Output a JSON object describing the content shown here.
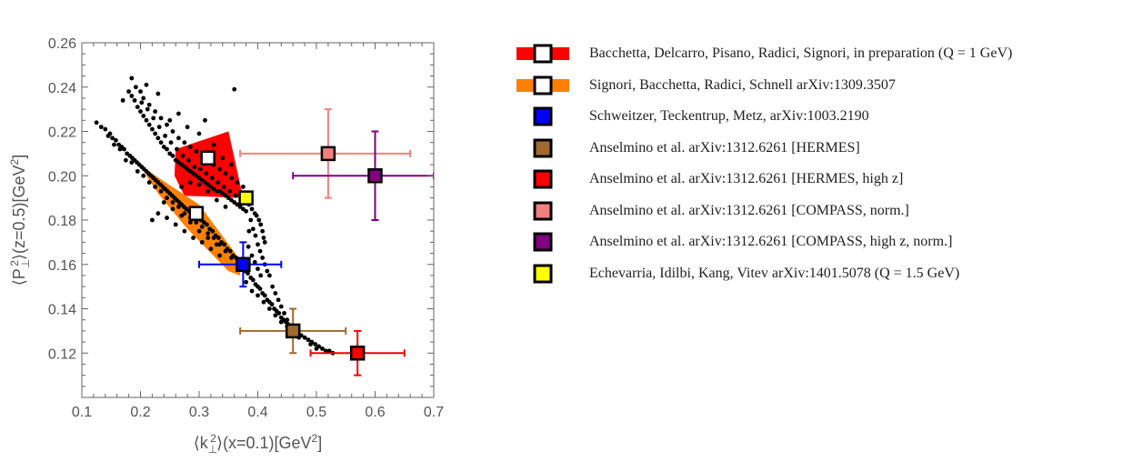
{
  "chart_data": {
    "type": "scatter",
    "title": "",
    "xlabel_parts": [
      "⟨k",
      "⊥",
      "2",
      "⟩(x=0.1)[GeV",
      "2",
      "]"
    ],
    "ylabel_parts": [
      "⟨P",
      "⊥",
      "2",
      "⟩(z=0.5)[GeV",
      "2",
      "]"
    ],
    "xlim": [
      0.1,
      0.7
    ],
    "ylim": [
      0.1,
      0.26
    ],
    "xticks": [
      "0.1",
      "0.2",
      "0.3",
      "0.4",
      "0.5",
      "0.6",
      "0.7"
    ],
    "yticks": [
      "0.12",
      "0.14",
      "0.16",
      "0.18",
      "0.20",
      "0.22",
      "0.24",
      "0.26"
    ],
    "grid": false,
    "legend_position": "right",
    "colors": {
      "red": "#ff0000",
      "orange": "#ff8000",
      "blue": "#0000ff",
      "brown": "#a0692e",
      "pink": "#f08080",
      "purple": "#800080",
      "yellow": "#ffff00",
      "points": "#000000"
    },
    "regions": [
      {
        "name": "Bacchetta, Delcarro, Pisano, Radici, Signori, in preparation (Q = 1 GeV)",
        "color": "#ff0000",
        "polygon": [
          [
            0.26,
            0.212
          ],
          [
            0.35,
            0.22
          ],
          [
            0.375,
            0.19
          ],
          [
            0.275,
            0.191
          ],
          [
            0.258,
            0.2
          ]
        ],
        "central": [
          0.315,
          0.208
        ]
      },
      {
        "name": "Signori, Bacchetta, Radici, Schnell arXiv:1309.3507",
        "color": "#ff8000",
        "polygon": [
          [
            0.21,
            0.203
          ],
          [
            0.22,
            0.201
          ],
          [
            0.3,
            0.187
          ],
          [
            0.37,
            0.162
          ],
          [
            0.37,
            0.155
          ],
          [
            0.35,
            0.157
          ],
          [
            0.28,
            0.176
          ],
          [
            0.23,
            0.192
          ],
          [
            0.21,
            0.2
          ]
        ],
        "central": [
          0.295,
          0.183
        ]
      }
    ],
    "series": [
      {
        "name": "Schweitzer, Teckentrup, Metz, arXiv:1003.2190",
        "color": "#0000ff",
        "x": 0.375,
        "y": 0.16,
        "xerr": [
          0.3,
          0.44
        ],
        "yerr": [
          0.15,
          0.17
        ]
      },
      {
        "name": "Anselmino et al. arXiv:1312.6261 [HERMES]",
        "color": "#a0692e",
        "x": 0.46,
        "y": 0.13,
        "xerr": [
          0.37,
          0.55
        ],
        "yerr": [
          0.12,
          0.14
        ]
      },
      {
        "name": "Anselmino et al. arXiv:1312.6261 [HERMES, high z]",
        "color": "#ff0000",
        "x": 0.57,
        "y": 0.12,
        "xerr": [
          0.49,
          0.65
        ],
        "yerr": [
          0.11,
          0.13
        ]
      },
      {
        "name": "Anselmino et al. arXiv:1312.6261 [COMPASS, norm.]",
        "color": "#f08080",
        "x": 0.52,
        "y": 0.21,
        "xerr": [
          0.37,
          0.66
        ],
        "yerr": [
          0.19,
          0.23
        ]
      },
      {
        "name": "Anselmino et al. arXiv:1312.6261 [COMPASS, high z, norm.]",
        "color": "#800080",
        "x": 0.6,
        "y": 0.2,
        "xerr": [
          0.46,
          0.7
        ],
        "yerr": [
          0.18,
          0.22
        ]
      },
      {
        "name": "Echevarria, Idilbi, Kang, Vitev arXiv:1401.5078 (Q = 1.5 GeV)",
        "color": "#ffff00",
        "x": 0.38,
        "y": 0.19,
        "xerr": null,
        "yerr": null
      }
    ],
    "points": [
      [
        0.125,
        0.224
      ],
      [
        0.133,
        0.222
      ],
      [
        0.14,
        0.221
      ],
      [
        0.148,
        0.219
      ],
      [
        0.152,
        0.217
      ],
      [
        0.158,
        0.216
      ],
      [
        0.163,
        0.214
      ],
      [
        0.168,
        0.213
      ],
      [
        0.172,
        0.212
      ],
      [
        0.177,
        0.21
      ],
      [
        0.182,
        0.209
      ],
      [
        0.186,
        0.208
      ],
      [
        0.19,
        0.207
      ],
      [
        0.194,
        0.206
      ],
      [
        0.198,
        0.205
      ],
      [
        0.202,
        0.204
      ],
      [
        0.206,
        0.203
      ],
      [
        0.21,
        0.202
      ],
      [
        0.214,
        0.201
      ],
      [
        0.218,
        0.2
      ],
      [
        0.222,
        0.199
      ],
      [
        0.226,
        0.198
      ],
      [
        0.23,
        0.197
      ],
      [
        0.234,
        0.196
      ],
      [
        0.238,
        0.195
      ],
      [
        0.242,
        0.194
      ],
      [
        0.246,
        0.193
      ],
      [
        0.25,
        0.192
      ],
      [
        0.254,
        0.191
      ],
      [
        0.258,
        0.19
      ],
      [
        0.262,
        0.189
      ],
      [
        0.266,
        0.188
      ],
      [
        0.27,
        0.187
      ],
      [
        0.274,
        0.186
      ],
      [
        0.278,
        0.185
      ],
      [
        0.283,
        0.184
      ],
      [
        0.288,
        0.183
      ],
      [
        0.293,
        0.182
      ],
      [
        0.298,
        0.181
      ],
      [
        0.303,
        0.18
      ],
      [
        0.308,
        0.179
      ],
      [
        0.313,
        0.178
      ],
      [
        0.318,
        0.176
      ],
      [
        0.323,
        0.175
      ],
      [
        0.328,
        0.173
      ],
      [
        0.333,
        0.172
      ],
      [
        0.338,
        0.17
      ],
      [
        0.343,
        0.169
      ],
      [
        0.348,
        0.167
      ],
      [
        0.353,
        0.166
      ],
      [
        0.358,
        0.164
      ],
      [
        0.363,
        0.163
      ],
      [
        0.368,
        0.161
      ],
      [
        0.145,
        0.218
      ],
      [
        0.155,
        0.214
      ],
      [
        0.165,
        0.212
      ],
      [
        0.175,
        0.207
      ],
      [
        0.185,
        0.206
      ],
      [
        0.195,
        0.202
      ],
      [
        0.205,
        0.2
      ],
      [
        0.215,
        0.197
      ],
      [
        0.225,
        0.195
      ],
      [
        0.235,
        0.193
      ],
      [
        0.245,
        0.19
      ],
      [
        0.255,
        0.188
      ],
      [
        0.265,
        0.186
      ],
      [
        0.275,
        0.183
      ],
      [
        0.285,
        0.181
      ],
      [
        0.295,
        0.179
      ],
      [
        0.305,
        0.177
      ],
      [
        0.315,
        0.174
      ],
      [
        0.325,
        0.172
      ],
      [
        0.335,
        0.169
      ],
      [
        0.345,
        0.166
      ],
      [
        0.355,
        0.163
      ],
      [
        0.365,
        0.16
      ],
      [
        0.373,
        0.158
      ],
      [
        0.378,
        0.157
      ],
      [
        0.383,
        0.156
      ],
      [
        0.388,
        0.154
      ],
      [
        0.392,
        0.153
      ],
      [
        0.396,
        0.151
      ],
      [
        0.4,
        0.15
      ],
      [
        0.404,
        0.149
      ],
      [
        0.408,
        0.147
      ],
      [
        0.412,
        0.146
      ],
      [
        0.416,
        0.144
      ],
      [
        0.42,
        0.143
      ],
      [
        0.424,
        0.142
      ],
      [
        0.428,
        0.14
      ],
      [
        0.432,
        0.139
      ],
      [
        0.436,
        0.138
      ],
      [
        0.44,
        0.136
      ],
      [
        0.444,
        0.135
      ],
      [
        0.448,
        0.134
      ],
      [
        0.452,
        0.133
      ],
      [
        0.456,
        0.131
      ],
      [
        0.462,
        0.13
      ],
      [
        0.468,
        0.129
      ],
      [
        0.474,
        0.128
      ],
      [
        0.48,
        0.127
      ],
      [
        0.486,
        0.126
      ],
      [
        0.492,
        0.125
      ],
      [
        0.498,
        0.124
      ],
      [
        0.504,
        0.123
      ],
      [
        0.51,
        0.122
      ],
      [
        0.516,
        0.121
      ],
      [
        0.522,
        0.121
      ],
      [
        0.528,
        0.12
      ],
      [
        0.38,
        0.152
      ],
      [
        0.39,
        0.148
      ],
      [
        0.4,
        0.146
      ],
      [
        0.41,
        0.143
      ],
      [
        0.42,
        0.14
      ],
      [
        0.43,
        0.137
      ],
      [
        0.44,
        0.134
      ],
      [
        0.45,
        0.132
      ],
      [
        0.47,
        0.127
      ],
      [
        0.49,
        0.124
      ],
      [
        0.5,
        0.122
      ],
      [
        0.18,
        0.238
      ],
      [
        0.185,
        0.236
      ],
      [
        0.19,
        0.234
      ],
      [
        0.195,
        0.231
      ],
      [
        0.2,
        0.229
      ],
      [
        0.205,
        0.227
      ],
      [
        0.21,
        0.225
      ],
      [
        0.215,
        0.223
      ],
      [
        0.22,
        0.221
      ],
      [
        0.225,
        0.219
      ],
      [
        0.23,
        0.217
      ],
      [
        0.235,
        0.215
      ],
      [
        0.24,
        0.213
      ],
      [
        0.245,
        0.212
      ],
      [
        0.25,
        0.21
      ],
      [
        0.255,
        0.209
      ],
      [
        0.26,
        0.207
      ],
      [
        0.265,
        0.206
      ],
      [
        0.27,
        0.205
      ],
      [
        0.275,
        0.204
      ],
      [
        0.28,
        0.203
      ],
      [
        0.285,
        0.202
      ],
      [
        0.29,
        0.201
      ],
      [
        0.295,
        0.2
      ],
      [
        0.3,
        0.199
      ],
      [
        0.305,
        0.198
      ],
      [
        0.31,
        0.197
      ],
      [
        0.315,
        0.196
      ],
      [
        0.32,
        0.195
      ],
      [
        0.325,
        0.194
      ],
      [
        0.33,
        0.193
      ],
      [
        0.335,
        0.193
      ],
      [
        0.34,
        0.192
      ],
      [
        0.345,
        0.191
      ],
      [
        0.35,
        0.19
      ],
      [
        0.355,
        0.189
      ],
      [
        0.36,
        0.188
      ],
      [
        0.365,
        0.187
      ],
      [
        0.37,
        0.186
      ],
      [
        0.375,
        0.185
      ],
      [
        0.38,
        0.184
      ],
      [
        0.192,
        0.24
      ],
      [
        0.202,
        0.233
      ],
      [
        0.212,
        0.23
      ],
      [
        0.222,
        0.226
      ],
      [
        0.232,
        0.222
      ],
      [
        0.242,
        0.218
      ],
      [
        0.252,
        0.215
      ],
      [
        0.262,
        0.212
      ],
      [
        0.272,
        0.209
      ],
      [
        0.282,
        0.207
      ],
      [
        0.292,
        0.204
      ],
      [
        0.302,
        0.203
      ],
      [
        0.312,
        0.201
      ],
      [
        0.322,
        0.199
      ],
      [
        0.332,
        0.197
      ],
      [
        0.342,
        0.195
      ],
      [
        0.352,
        0.193
      ],
      [
        0.362,
        0.191
      ],
      [
        0.372,
        0.189
      ],
      [
        0.382,
        0.188
      ],
      [
        0.205,
        0.235
      ],
      [
        0.215,
        0.232
      ],
      [
        0.225,
        0.229
      ],
      [
        0.235,
        0.226
      ],
      [
        0.245,
        0.223
      ],
      [
        0.255,
        0.22
      ],
      [
        0.265,
        0.217
      ],
      [
        0.275,
        0.215
      ],
      [
        0.285,
        0.213
      ],
      [
        0.295,
        0.211
      ],
      [
        0.305,
        0.209
      ],
      [
        0.315,
        0.207
      ],
      [
        0.325,
        0.205
      ],
      [
        0.335,
        0.203
      ],
      [
        0.345,
        0.201
      ],
      [
        0.355,
        0.199
      ],
      [
        0.365,
        0.197
      ],
      [
        0.375,
        0.195
      ],
      [
        0.17,
        0.234
      ],
      [
        0.185,
        0.244
      ],
      [
        0.2,
        0.238
      ],
      [
        0.21,
        0.241
      ],
      [
        0.23,
        0.237
      ],
      [
        0.25,
        0.225
      ],
      [
        0.265,
        0.228
      ],
      [
        0.28,
        0.222
      ],
      [
        0.3,
        0.219
      ],
      [
        0.31,
        0.225
      ],
      [
        0.325,
        0.214
      ],
      [
        0.34,
        0.208
      ],
      [
        0.355,
        0.205
      ],
      [
        0.36,
        0.239
      ],
      [
        0.27,
        0.195
      ],
      [
        0.285,
        0.197
      ],
      [
        0.3,
        0.196
      ],
      [
        0.315,
        0.193
      ],
      [
        0.33,
        0.189
      ],
      [
        0.345,
        0.186
      ],
      [
        0.385,
        0.187
      ],
      [
        0.39,
        0.185
      ],
      [
        0.395,
        0.183
      ],
      [
        0.398,
        0.182
      ],
      [
        0.402,
        0.18
      ],
      [
        0.405,
        0.178
      ],
      [
        0.408,
        0.175
      ],
      [
        0.41,
        0.172
      ],
      [
        0.412,
        0.17
      ],
      [
        0.388,
        0.18
      ],
      [
        0.392,
        0.176
      ],
      [
        0.396,
        0.173
      ],
      [
        0.4,
        0.169
      ],
      [
        0.404,
        0.166
      ],
      [
        0.408,
        0.163
      ],
      [
        0.412,
        0.16
      ],
      [
        0.416,
        0.157
      ],
      [
        0.42,
        0.155
      ],
      [
        0.425,
        0.15
      ],
      [
        0.43,
        0.147
      ],
      [
        0.435,
        0.144
      ],
      [
        0.44,
        0.141
      ],
      [
        0.445,
        0.138
      ],
      [
        0.45,
        0.135
      ],
      [
        0.385,
        0.175
      ],
      [
        0.384,
        0.168
      ],
      [
        0.39,
        0.164
      ],
      [
        0.395,
        0.161
      ],
      [
        0.4,
        0.158
      ],
      [
        0.405,
        0.155
      ],
      [
        0.22,
        0.18
      ],
      [
        0.23,
        0.183
      ],
      [
        0.245,
        0.181
      ],
      [
        0.26,
        0.178
      ],
      [
        0.275,
        0.175
      ],
      [
        0.29,
        0.172
      ],
      [
        0.305,
        0.17
      ],
      [
        0.32,
        0.167
      ],
      [
        0.335,
        0.164
      ],
      [
        0.24,
        0.188
      ],
      [
        0.255,
        0.185
      ],
      [
        0.27,
        0.182
      ],
      [
        0.285,
        0.179
      ],
      [
        0.3,
        0.175
      ],
      [
        0.315,
        0.172
      ],
      [
        0.33,
        0.169
      ]
    ]
  }
}
